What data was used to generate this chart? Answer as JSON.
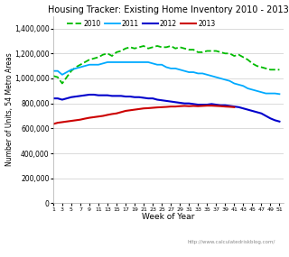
{
  "title": "Housing Tracker: Existing Home Inventory 2010 - 2013",
  "xlabel": "Week of Year",
  "ylabel": "Number of Units, 54 Metro Areas",
  "watermark": "http://www.calculatedriskblog.com/",
  "background_color": "#ffffff",
  "plot_bg_color": "#ffffff",
  "ylim": [
    0,
    1500000
  ],
  "yticks": [
    0,
    200000,
    400000,
    600000,
    800000,
    1000000,
    1200000,
    1400000
  ],
  "xticks": [
    1,
    3,
    5,
    7,
    9,
    11,
    13,
    15,
    17,
    19,
    21,
    23,
    25,
    27,
    29,
    31,
    33,
    35,
    37,
    39,
    41,
    43,
    45,
    47,
    49,
    51
  ],
  "series": {
    "2010": {
      "color": "#00bb00",
      "linestyle": "--",
      "linewidth": 1.3,
      "values": [
        1020000,
        1010000,
        960000,
        1010000,
        1060000,
        1090000,
        1110000,
        1130000,
        1150000,
        1160000,
        1170000,
        1190000,
        1200000,
        1180000,
        1210000,
        1220000,
        1240000,
        1250000,
        1240000,
        1250000,
        1260000,
        1240000,
        1250000,
        1260000,
        1250000,
        1250000,
        1260000,
        1240000,
        1250000,
        1240000,
        1230000,
        1230000,
        1210000,
        1210000,
        1220000,
        1220000,
        1220000,
        1210000,
        1200000,
        1200000,
        1180000,
        1190000,
        1170000,
        1150000,
        1120000,
        1100000,
        1090000,
        1080000,
        1070000,
        1070000,
        1070000
      ]
    },
    "2011": {
      "color": "#00aaff",
      "linestyle": "-",
      "linewidth": 1.3,
      "values": [
        1060000,
        1060000,
        1030000,
        1050000,
        1070000,
        1080000,
        1090000,
        1100000,
        1110000,
        1110000,
        1110000,
        1120000,
        1130000,
        1130000,
        1130000,
        1130000,
        1130000,
        1130000,
        1130000,
        1130000,
        1130000,
        1130000,
        1120000,
        1110000,
        1110000,
        1090000,
        1080000,
        1080000,
        1070000,
        1060000,
        1050000,
        1050000,
        1040000,
        1040000,
        1030000,
        1020000,
        1010000,
        1000000,
        990000,
        980000,
        960000,
        950000,
        940000,
        920000,
        910000,
        900000,
        890000,
        880000,
        880000,
        880000,
        875000
      ]
    },
    "2012": {
      "color": "#0000cc",
      "linestyle": "-",
      "linewidth": 1.5,
      "values": [
        840000,
        840000,
        830000,
        840000,
        850000,
        855000,
        860000,
        865000,
        870000,
        870000,
        865000,
        865000,
        865000,
        860000,
        860000,
        860000,
        855000,
        855000,
        850000,
        850000,
        845000,
        840000,
        840000,
        830000,
        825000,
        820000,
        815000,
        810000,
        805000,
        800000,
        800000,
        795000,
        790000,
        790000,
        790000,
        795000,
        790000,
        785000,
        785000,
        780000,
        775000,
        770000,
        760000,
        750000,
        740000,
        730000,
        720000,
        700000,
        680000,
        665000,
        655000
      ]
    },
    "2013": {
      "color": "#cc0000",
      "linestyle": "-",
      "linewidth": 1.5,
      "values": [
        635000,
        645000,
        650000,
        655000,
        660000,
        665000,
        670000,
        678000,
        685000,
        690000,
        695000,
        700000,
        708000,
        715000,
        720000,
        730000,
        740000,
        745000,
        750000,
        755000,
        760000,
        762000,
        765000,
        768000,
        770000,
        772000,
        775000,
        775000,
        778000,
        780000,
        778000,
        780000,
        778000,
        780000,
        782000,
        782000,
        780000,
        778000,
        775000,
        773000,
        770000,
        null,
        null,
        null,
        null,
        null,
        null,
        null,
        null,
        null,
        null
      ]
    }
  }
}
